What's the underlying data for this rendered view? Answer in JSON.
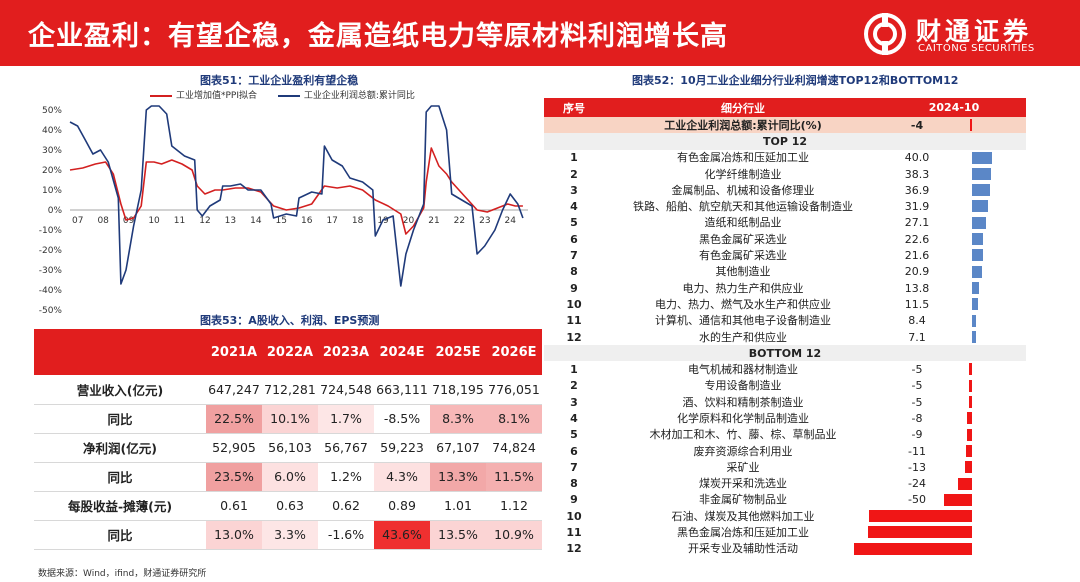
{
  "header": {
    "title": "企业盈利：有望企稳，金属造纸电力等原材料利润增长高",
    "logo_cn": "财通证券",
    "logo_en": "CAITONG SECURITIES"
  },
  "colors": {
    "brand_red": "#e11e1e",
    "series_red": "#d32020",
    "series_blue": "#1f3a7a",
    "bar_blue": "#5b87c7",
    "bar_red": "#f01616"
  },
  "chart51": {
    "caption": "图表51：工业企业盈利有望企稳",
    "legend": [
      "工业增加值*PPI拟合",
      "工业企业利润总额:累计同比"
    ]
  },
  "chart_data": {
    "type": "line",
    "title": "工业企业盈利有望企稳",
    "x_ticks": [
      "07",
      "08",
      "09",
      "10",
      "11",
      "12",
      "13",
      "14",
      "15",
      "16",
      "17",
      "18",
      "19",
      "20",
      "21",
      "22",
      "23",
      "24"
    ],
    "y_ticks": [
      "50%",
      "40%",
      "30%",
      "20%",
      "10%",
      "0%",
      "-10%",
      "-20%",
      "-30%",
      "-40%",
      "-50%"
    ],
    "ylim": [
      -50,
      50
    ],
    "xlim": [
      2007,
      2025
    ],
    "series": [
      {
        "name": "工业增加值*PPI拟合",
        "color": "#d32020",
        "x": [
          2007.0,
          2007.5,
          2008.0,
          2008.4,
          2008.7,
          2009.0,
          2009.2,
          2009.5,
          2009.8,
          2010.0,
          2010.3,
          2010.6,
          2011.0,
          2011.4,
          2011.8,
          2012.0,
          2012.3,
          2012.7,
          2013.0,
          2013.5,
          2014.0,
          2014.5,
          2015.0,
          2015.5,
          2016.0,
          2016.5,
          2017.0,
          2017.5,
          2018.0,
          2018.5,
          2019.0,
          2019.5,
          2020.0,
          2020.2,
          2020.5,
          2020.9,
          2021.0,
          2021.2,
          2021.5,
          2021.8,
          2022.0,
          2022.5,
          2023.0,
          2023.4,
          2023.8,
          2024.0,
          2024.2,
          2024.5,
          2024.8
        ],
        "y": [
          20,
          21,
          23,
          24,
          18,
          3,
          -5,
          -4,
          2,
          24,
          24,
          23,
          25,
          23,
          20,
          12,
          8,
          10,
          10,
          11,
          11,
          9,
          2,
          0,
          1,
          3,
          12,
          11,
          12,
          10,
          5,
          2,
          -2,
          -12,
          -8,
          1,
          14,
          31,
          22,
          18,
          14,
          7,
          0,
          -1,
          1,
          2,
          3,
          2,
          2
        ]
      },
      {
        "name": "工业企业利润总额:累计同比",
        "color": "#1f3a7a",
        "x": [
          2007.0,
          2007.3,
          2007.6,
          2007.9,
          2008.2,
          2008.5,
          2008.9,
          2009.0,
          2009.2,
          2009.5,
          2009.8,
          2010.0,
          2010.2,
          2010.5,
          2010.8,
          2011.0,
          2011.5,
          2011.9,
          2012.0,
          2012.2,
          2012.5,
          2012.9,
          2013.0,
          2013.3,
          2013.7,
          2014.0,
          2014.5,
          2014.9,
          2015.0,
          2015.5,
          2015.9,
          2016.0,
          2016.5,
          2016.9,
          2017.0,
          2017.3,
          2017.7,
          2018.0,
          2018.5,
          2018.9,
          2019.0,
          2019.3,
          2019.7,
          2020.0,
          2020.2,
          2020.5,
          2020.9,
          2021.0,
          2021.2,
          2021.5,
          2021.8,
          2022.0,
          2022.4,
          2022.8,
          2023.0,
          2023.3,
          2023.7,
          2024.0,
          2024.3,
          2024.6,
          2024.8
        ],
        "y": [
          44,
          42,
          35,
          28,
          30,
          24,
          6,
          -37,
          -30,
          -8,
          10,
          50,
          75,
          55,
          48,
          32,
          27,
          25,
          0,
          -3,
          2,
          5,
          12,
          12,
          13,
          10,
          10,
          3,
          -4,
          -2,
          -3,
          6,
          9,
          8,
          32,
          25,
          22,
          16,
          14,
          10,
          -13,
          -5,
          -3,
          -38,
          -22,
          -10,
          3,
          49,
          60,
          56,
          40,
          8,
          5,
          2,
          -22,
          -18,
          -10,
          0,
          8,
          3,
          -4
        ]
      }
    ]
  },
  "table53": {
    "caption": "图表53：A股收入、利润、EPS预测",
    "headers": [
      "",
      "2021A",
      "2022A",
      "2023A",
      "2024E",
      "2025E",
      "2026E"
    ],
    "rows": [
      {
        "label": "营业收入(亿元)",
        "cells": [
          "647,247",
          "712,281",
          "724,548",
          "663,111",
          "718,195",
          "776,051"
        ],
        "is_sub": false
      },
      {
        "label": "同比",
        "cells": [
          "22.5%",
          "10.1%",
          "1.7%",
          "-8.5%",
          "8.3%",
          "8.1%"
        ],
        "is_sub": true,
        "colors": [
          "#f0a0a0",
          "#fbd4d4",
          "#fde6e6",
          "#ffffff",
          "#f7b8b8",
          "#f7b8b8"
        ]
      },
      {
        "label": "净利润(亿元)",
        "cells": [
          "52,905",
          "56,103",
          "56,767",
          "59,223",
          "67,107",
          "74,824"
        ],
        "is_sub": false
      },
      {
        "label": "同比",
        "cells": [
          "23.5%",
          "6.0%",
          "1.2%",
          "4.3%",
          "13.3%",
          "11.5%"
        ],
        "is_sub": true,
        "colors": [
          "#f0a0a0",
          "#fde1e1",
          "#ffffff",
          "#fde1e1",
          "#f2a8a8",
          "#f4b0b0"
        ]
      },
      {
        "label": "每股收益-摊薄(元)",
        "cells": [
          "0.61",
          "0.63",
          "0.62",
          "0.89",
          "1.01",
          "1.12"
        ],
        "is_sub": false
      },
      {
        "label": "同比",
        "cells": [
          "13.0%",
          "3.3%",
          "-1.6%",
          "43.6%",
          "13.5%",
          "10.9%"
        ],
        "is_sub": true,
        "colors": [
          "#fbd4d4",
          "#fde6e6",
          "#ffffff",
          "#ef3030",
          "#fbd4d4",
          "#fbd4d4"
        ]
      }
    ]
  },
  "table52": {
    "caption": "图表52：10月工业企业细分行业利润增速TOP12和BOTTOM12",
    "headers": [
      "序号",
      "细分行业",
      "2024-10"
    ],
    "summary": {
      "name": "工业企业利润总额:累计同比(%)",
      "value": "-4",
      "v": -4
    },
    "top_label": "TOP 12",
    "bottom_label": "BOTTOM 12",
    "top": [
      {
        "idx": "1",
        "name": "有色金属冶炼和压延加工业",
        "value": "40.0",
        "v": 40.0
      },
      {
        "idx": "2",
        "name": "化学纤维制造业",
        "value": "38.3",
        "v": 38.3
      },
      {
        "idx": "3",
        "name": "金属制品、机械和设备修理业",
        "value": "36.9",
        "v": 36.9
      },
      {
        "idx": "4",
        "name": "铁路、船舶、航空航天和其他运输设备制造业",
        "value": "31.9",
        "v": 31.9
      },
      {
        "idx": "5",
        "name": "造纸和纸制品业",
        "value": "27.1",
        "v": 27.1
      },
      {
        "idx": "6",
        "name": "黑色金属矿采选业",
        "value": "22.6",
        "v": 22.6
      },
      {
        "idx": "7",
        "name": "有色金属矿采选业",
        "value": "21.6",
        "v": 21.6
      },
      {
        "idx": "8",
        "name": "其他制造业",
        "value": "20.9",
        "v": 20.9
      },
      {
        "idx": "9",
        "name": "电力、热力生产和供应业",
        "value": "13.8",
        "v": 13.8
      },
      {
        "idx": "10",
        "name": "电力、热力、燃气及水生产和供应业",
        "value": "11.5",
        "v": 11.5
      },
      {
        "idx": "11",
        "name": "计算机、通信和其他电子设备制造业",
        "value": "8.4",
        "v": 8.4
      },
      {
        "idx": "12",
        "name": "水的生产和供应业",
        "value": "7.1",
        "v": 7.1
      }
    ],
    "bottom": [
      {
        "idx": "1",
        "name": "电气机械和器材制造业",
        "value": "-5",
        "v": -5
      },
      {
        "idx": "2",
        "name": "专用设备制造业",
        "value": "-5",
        "v": -5
      },
      {
        "idx": "3",
        "name": "酒、饮料和精制茶制造业",
        "value": "-5",
        "v": -5
      },
      {
        "idx": "4",
        "name": "化学原料和化学制品制造业",
        "value": "-8",
        "v": -8
      },
      {
        "idx": "5",
        "name": "木材加工和木、竹、藤、棕、草制品业",
        "value": "-9",
        "v": -9
      },
      {
        "idx": "6",
        "name": "废弃资源综合利用业",
        "value": "-11",
        "v": -11
      },
      {
        "idx": "7",
        "name": "采矿业",
        "value": "-13",
        "v": -13
      },
      {
        "idx": "8",
        "name": "煤炭开采和洗选业",
        "value": "-24",
        "v": -24
      },
      {
        "idx": "9",
        "name": "非金属矿物制品业",
        "value": "-50",
        "v": -50
      },
      {
        "idx": "10",
        "name": "石油、煤炭及其他燃料加工业",
        "value": "-182",
        "v": -182
      },
      {
        "idx": "11",
        "name": "黑色金属冶炼和压延加工业",
        "value": "-184",
        "v": -184
      },
      {
        "idx": "12",
        "name": "开采专业及辅助性活动",
        "value": "-209",
        "v": -209
      }
    ]
  },
  "source": "数据来源：Wind，ifind，财通证券研究所"
}
